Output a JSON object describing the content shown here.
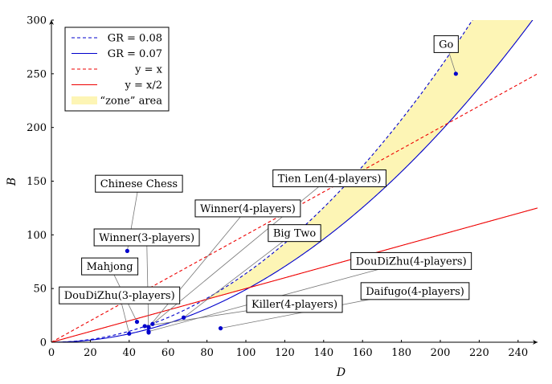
{
  "chart_data": {
    "type": "line",
    "xlabel": "D",
    "ylabel": "B",
    "xlim": [
      0,
      250
    ],
    "ylim": [
      0,
      300
    ],
    "xticks": [
      0,
      20,
      40,
      60,
      80,
      100,
      120,
      140,
      160,
      180,
      200,
      220,
      240
    ],
    "yticks": [
      0,
      50,
      100,
      150,
      200,
      250,
      300
    ],
    "grid": false,
    "legend_position": "top-left",
    "legend": [
      {
        "label": "GR = 0.08",
        "style": "blue-dashed"
      },
      {
        "label": "GR = 0.07",
        "style": "blue-solid"
      },
      {
        "label": "y = x",
        "style": "red-dashed"
      },
      {
        "label": "y = x/2",
        "style": "red-solid"
      },
      {
        "label": "“zone” area",
        "style": "yellow-fill"
      }
    ],
    "series": [
      {
        "name": "GR = 0.08",
        "formula": "B = (0.08*D)^2",
        "color": "#0000cc",
        "dash": true
      },
      {
        "name": "GR = 0.07",
        "formula": "B = (0.07*D)^2",
        "color": "#0000cc",
        "dash": false
      },
      {
        "name": "y = x",
        "formula": "B = D",
        "color": "#ee0000",
        "dash": true
      },
      {
        "name": "y = x/2",
        "formula": "B = D/2",
        "color": "#ee0000",
        "dash": false
      }
    ],
    "zone": {
      "label": "“zone” area",
      "color": "#fdf5b5",
      "between": [
        "GR = 0.07",
        "GR = 0.08"
      ],
      "where": "above y = x/2"
    },
    "points": [
      {
        "label": "Go",
        "x": 208,
        "y": 250,
        "label_anchor": [
          203,
          278
        ]
      },
      {
        "label": "Tien Len(4-players)",
        "x": 52,
        "y": 17,
        "label_anchor": [
          143,
          153
        ]
      },
      {
        "label": "Chinese Chess",
        "x": 39,
        "y": 85,
        "label_anchor": [
          45,
          148
        ]
      },
      {
        "label": "Winner(4-players)",
        "x": 50,
        "y": 14,
        "label_anchor": [
          101,
          125
        ]
      },
      {
        "label": "Winner(3-players)",
        "x": 50,
        "y": 9,
        "label_anchor": [
          49,
          98
        ]
      },
      {
        "label": "Big Two",
        "x": 68,
        "y": 23,
        "label_anchor": [
          125,
          102
        ]
      },
      {
        "label": "Mahjong",
        "x": 44,
        "y": 19,
        "label_anchor": [
          30,
          71
        ]
      },
      {
        "label": "DouDiZhu(4-players)",
        "x": 50,
        "y": 10,
        "label_anchor": [
          185,
          76
        ]
      },
      {
        "label": "DouDiZhu(3-players)",
        "x": 40,
        "y": 8,
        "label_anchor": [
          35,
          44
        ]
      },
      {
        "label": "Daifugo(4-players)",
        "x": 87,
        "y": 13,
        "label_anchor": [
          187,
          48
        ]
      },
      {
        "label": "Killer(4-players)",
        "x": 48,
        "y": 15,
        "label_anchor": [
          125,
          36
        ]
      }
    ]
  }
}
